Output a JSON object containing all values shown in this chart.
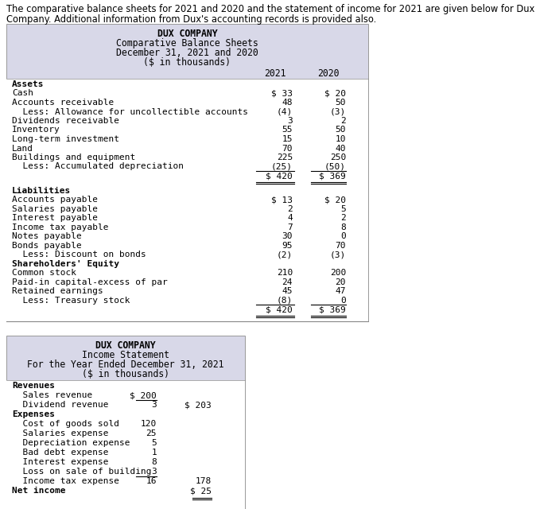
{
  "intro_line1": "The comparative balance sheets for 2021 and 2020 and the statement of income for 2021 are given below for Dux",
  "intro_line2": "Company. Additional information from Dux's accounting records is provided also.",
  "balance_sheet": {
    "title_lines": [
      "DUX COMPANY",
      "Comparative Balance Sheets",
      "December 31, 2021 and 2020",
      "($ in thousands)"
    ],
    "bg_color": "#d8d8e8",
    "rows": [
      {
        "label": "Assets",
        "v2021": "",
        "v2020": "",
        "bold": true
      },
      {
        "label": "Cash",
        "v2021": "$ 33",
        "v2020": "$ 20",
        "bold": false
      },
      {
        "label": "Accounts receivable",
        "v2021": "48",
        "v2020": "50",
        "bold": false
      },
      {
        "label": "  Less: Allowance for uncollectible accounts",
        "v2021": "(4)",
        "v2020": "(3)",
        "bold": false
      },
      {
        "label": "Dividends receivable",
        "v2021": "3",
        "v2020": "2",
        "bold": false
      },
      {
        "label": "Inventory",
        "v2021": "55",
        "v2020": "50",
        "bold": false
      },
      {
        "label": "Long-term investment",
        "v2021": "15",
        "v2020": "10",
        "bold": false
      },
      {
        "label": "Land",
        "v2021": "70",
        "v2020": "40",
        "bold": false
      },
      {
        "label": "Buildings and equipment",
        "v2021": "225",
        "v2020": "250",
        "bold": false
      },
      {
        "label": "  Less: Accumulated depreciation",
        "v2021": "(25)",
        "v2020": "(50)",
        "bold": false
      },
      {
        "label": "",
        "v2021": "$ 420",
        "v2020": "$ 369",
        "bold": false,
        "total": true
      },
      {
        "label": "",
        "v2021": "",
        "v2020": "",
        "spacer": true
      },
      {
        "label": "Liabilities",
        "v2021": "",
        "v2020": "",
        "bold": true
      },
      {
        "label": "Accounts payable",
        "v2021": "$ 13",
        "v2020": "$ 20",
        "bold": false
      },
      {
        "label": "Salaries payable",
        "v2021": "2",
        "v2020": "5",
        "bold": false
      },
      {
        "label": "Interest payable",
        "v2021": "4",
        "v2020": "2",
        "bold": false
      },
      {
        "label": "Income tax payable",
        "v2021": "7",
        "v2020": "8",
        "bold": false
      },
      {
        "label": "Notes payable",
        "v2021": "30",
        "v2020": "0",
        "bold": false
      },
      {
        "label": "Bonds payable",
        "v2021": "95",
        "v2020": "70",
        "bold": false
      },
      {
        "label": "  Less: Discount on bonds",
        "v2021": "(2)",
        "v2020": "(3)",
        "bold": false
      },
      {
        "label": "Shareholders' Equity",
        "v2021": "",
        "v2020": "",
        "bold": true
      },
      {
        "label": "Common stock",
        "v2021": "210",
        "v2020": "200",
        "bold": false
      },
      {
        "label": "Paid-in capital-excess of par",
        "v2021": "24",
        "v2020": "20",
        "bold": false
      },
      {
        "label": "Retained earnings",
        "v2021": "45",
        "v2020": "47",
        "bold": false
      },
      {
        "label": "  Less: Treasury stock",
        "v2021": "(8)",
        "v2020": "0",
        "bold": false
      },
      {
        "label": "",
        "v2021": "$ 420",
        "v2020": "$ 369",
        "bold": false,
        "total": true
      }
    ]
  },
  "income_statement": {
    "title_lines": [
      "DUX COMPANY",
      "Income Statement",
      "For the Year Ended December 31, 2021",
      "($ in thousands)"
    ],
    "bg_color": "#d8d8e8",
    "rows": [
      {
        "label": "Revenues",
        "c1": "",
        "c2": "",
        "bold": true
      },
      {
        "label": "  Sales revenue",
        "c1": "$ 200",
        "c2": "",
        "bold": false
      },
      {
        "label": "  Dividend revenue",
        "c1": "3",
        "c2": "$ 203",
        "bold": false,
        "underline_c1": true
      },
      {
        "label": "Expenses",
        "c1": "",
        "c2": "",
        "bold": true
      },
      {
        "label": "  Cost of goods sold",
        "c1": "120",
        "c2": "",
        "bold": false
      },
      {
        "label": "  Salaries expense",
        "c1": "25",
        "c2": "",
        "bold": false
      },
      {
        "label": "  Depreciation expense",
        "c1": "5",
        "c2": "",
        "bold": false
      },
      {
        "label": "  Bad debt expense",
        "c1": "1",
        "c2": "",
        "bold": false
      },
      {
        "label": "  Interest expense",
        "c1": "8",
        "c2": "",
        "bold": false
      },
      {
        "label": "  Loss on sale of building",
        "c1": "3",
        "c2": "",
        "bold": false
      },
      {
        "label": "  Income tax expense",
        "c1": "16",
        "c2": "178",
        "bold": false,
        "underline_c1": true
      },
      {
        "label": "Net income",
        "c1": "",
        "c2": "$ 25",
        "bold": true,
        "total": true
      }
    ]
  },
  "font_family": "monospace",
  "text_color": "#000000"
}
